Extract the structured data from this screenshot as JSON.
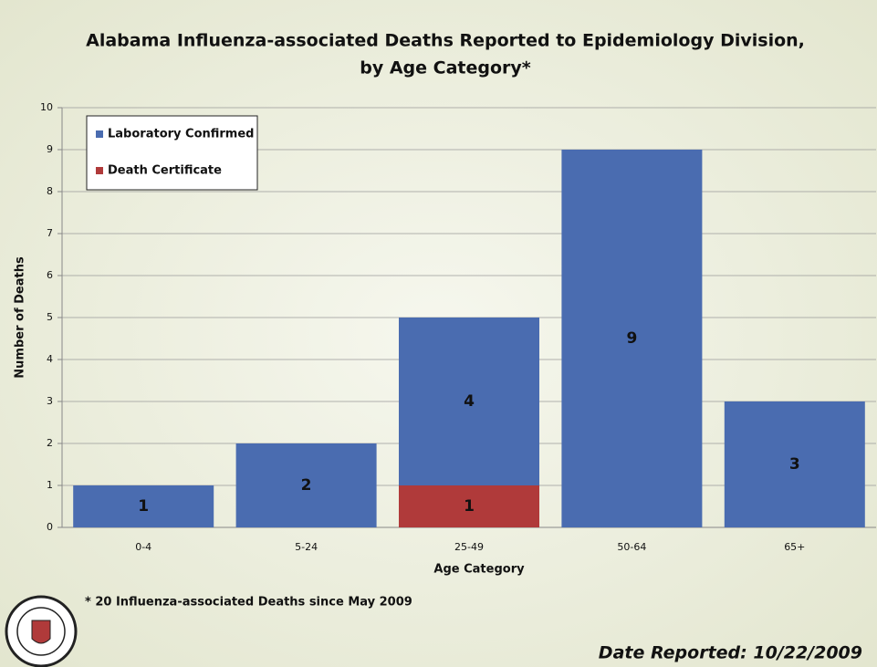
{
  "chart_data": {
    "type": "stacked_bar",
    "title": "Alabama Influenza-associated Deaths Reported to Epidemiology Division,",
    "subtitle": "by Age Category*",
    "x_label": "Age Category",
    "y_label": "Number of Deaths",
    "categories": [
      "0-4",
      "5-24",
      "25-49",
      "50-64",
      "65+"
    ],
    "series": [
      {
        "name": "Laboratory Confirmed",
        "color": "#4a6cb0",
        "values": [
          1,
          2,
          4,
          9,
          3
        ]
      },
      {
        "name": "Death Certificate",
        "color": "#b03a3a",
        "values": [
          null,
          null,
          1,
          null,
          null
        ]
      }
    ],
    "ylim": [
      0,
      10
    ],
    "yticks": [
      0,
      1,
      2,
      3,
      4,
      5,
      6,
      7,
      8,
      9,
      10
    ],
    "grid": true,
    "legend": "top-left",
    "footnote": "* 20 Influenza-associated Deaths since May 2009",
    "date_reported": "Date Reported: 10/22/2009"
  }
}
